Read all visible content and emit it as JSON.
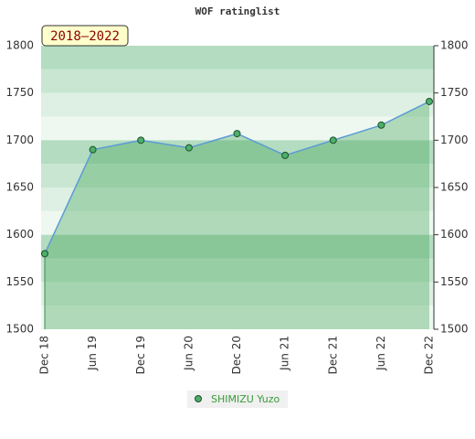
{
  "chart_data": {
    "type": "line",
    "title": "WOF ratinglist",
    "subtitle": "2018–2022",
    "categories": [
      "Dec 18",
      "Jun 19",
      "Dec 19",
      "Jun 20",
      "Dec 20",
      "Jun 21",
      "Dec 21",
      "Jun 22",
      "Dec 22"
    ],
    "series": [
      {
        "name": "SHIMIZU Yuzo",
        "color": "#5b9bd5",
        "values": [
          1580,
          1690,
          1700,
          1692,
          1707,
          1684,
          1700,
          1716,
          1741
        ]
      }
    ],
    "ylim": [
      1500,
      1800
    ],
    "yticks": [
      1500,
      1550,
      1600,
      1650,
      1700,
      1750,
      1800
    ],
    "grid": false
  }
}
